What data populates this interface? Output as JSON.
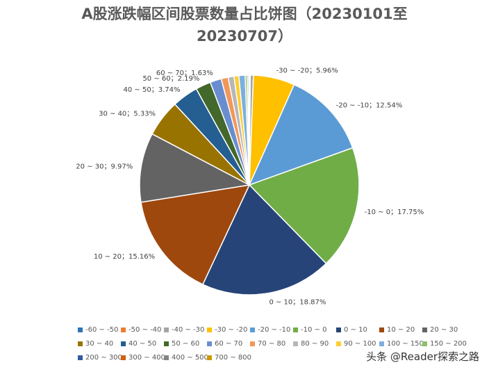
{
  "chart_data": {
    "type": "pie",
    "title_line1": "A股涨跌幅区间股票数量占比饼图（20230101至",
    "title_line2": "20230707）",
    "slices": [
      {
        "label": "-60 ~ -50",
        "value": 0.03,
        "color": "#2e75b6"
      },
      {
        "label": "-50 ~ -40",
        "value": 0.1,
        "color": "#ed7d31"
      },
      {
        "label": "-40 ~ -30",
        "value": 0.45,
        "color": "#a5a5a5"
      },
      {
        "label": "-30 ~ -20",
        "value": 5.96,
        "color": "#ffc000"
      },
      {
        "label": "-20 ~ -10",
        "value": 12.54,
        "color": "#5b9bd5"
      },
      {
        "label": "-10 ~ 0",
        "value": 17.75,
        "color": "#70ad47"
      },
      {
        "label": "0 ~ 10",
        "value": 18.87,
        "color": "#264478"
      },
      {
        "label": "10 ~ 20",
        "value": 15.16,
        "color": "#9e480e"
      },
      {
        "label": "20 ~ 30",
        "value": 9.97,
        "color": "#636363"
      },
      {
        "label": "30 ~ 40",
        "value": 5.33,
        "color": "#997300"
      },
      {
        "label": "40 ~ 50",
        "value": 3.74,
        "color": "#255e91"
      },
      {
        "label": "50 ~ 60",
        "value": 2.19,
        "color": "#43682b"
      },
      {
        "label": "60 ~ 70",
        "value": 1.63,
        "color": "#698ed0"
      },
      {
        "label": "70 ~ 80",
        "value": 1.0,
        "color": "#f1975a"
      },
      {
        "label": "80 ~ 90",
        "value": 0.84,
        "color": "#b7b7b7"
      },
      {
        "label": "90 ~ 100",
        "value": 0.7,
        "color": "#ffcd33"
      },
      {
        "label": "100 ~ 150",
        "value": 0.9,
        "color": "#7cafdd"
      },
      {
        "label": "150 ~ 200",
        "value": 0.3,
        "color": "#8cc168"
      },
      {
        "label": "200 ~ 300",
        "value": 0.2,
        "color": "#335aa1"
      },
      {
        "label": "300 ~ 400",
        "value": 0.05,
        "color": "#d26012"
      },
      {
        "label": "400 ~ 500",
        "value": 0.03,
        "color": "#848484"
      },
      {
        "label": "700 ~ 800",
        "value": 0.02,
        "color": "#cc9a00"
      }
    ],
    "data_labels": [
      {
        "label": "-30 ~ -20",
        "value_text": "5.96%"
      },
      {
        "label": "-20 ~ -10",
        "value_text": "12.54%"
      },
      {
        "label": "-10 ~ 0",
        "value_text": "17.75%"
      },
      {
        "label": "0 ~ 10",
        "value_text": "18.87%"
      },
      {
        "label": "10 ~ 20",
        "value_text": "15.16%"
      },
      {
        "label": "20 ~ 30",
        "value_text": "9.97%"
      },
      {
        "label": "30 ~ 40",
        "value_text": "5.33%"
      },
      {
        "label": "40 ~ 50",
        "value_text": "3.74%"
      },
      {
        "label": "50 ~ 60",
        "value_text": "2.19%"
      },
      {
        "label": "60 ~ 70",
        "value_text": "1.63%"
      }
    ],
    "legend_position": "bottom"
  },
  "watermark": "头条 @Reader探索之路"
}
